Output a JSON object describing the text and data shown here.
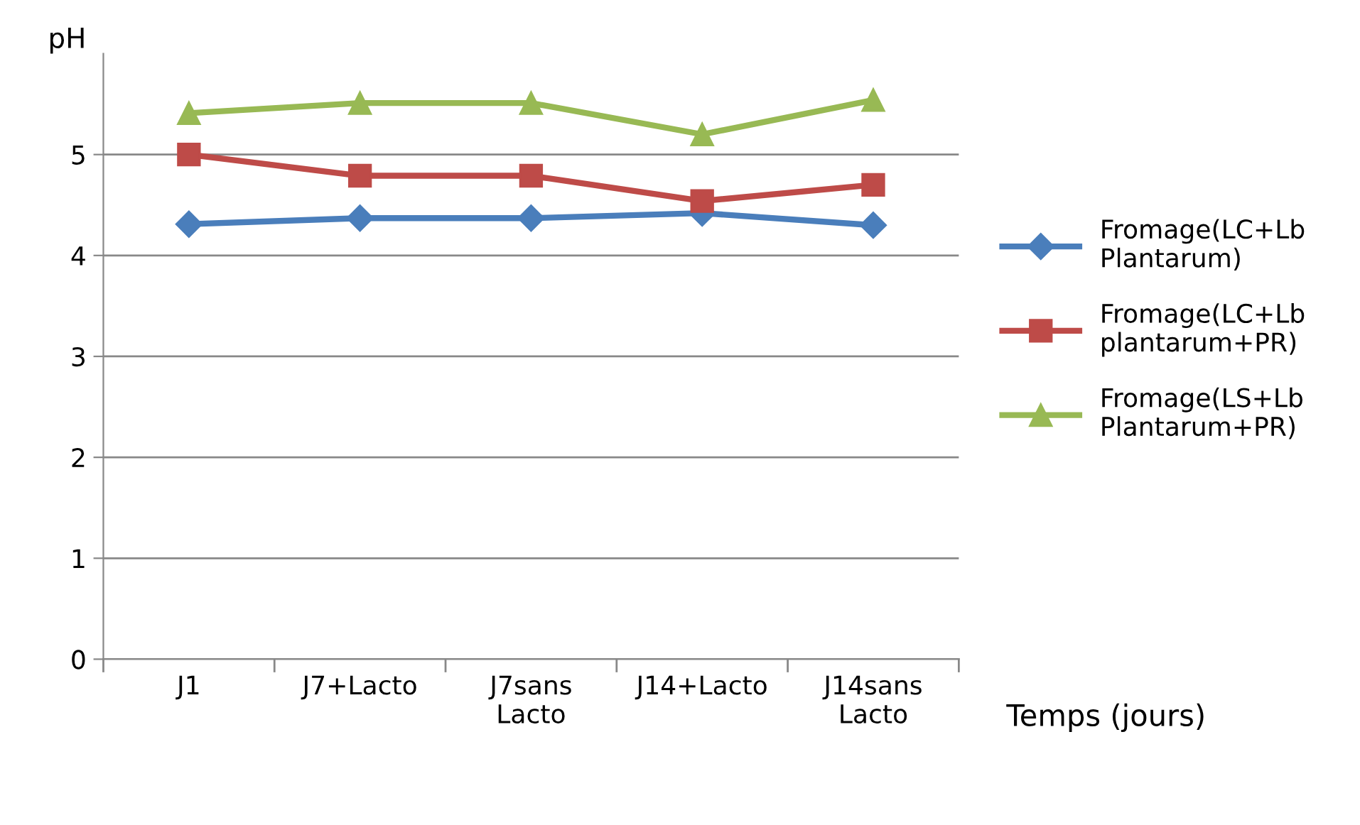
{
  "chart_data": {
    "type": "line",
    "ylabel": "pH",
    "xlabel": "Temps (jours)",
    "categories": [
      "J1",
      "J7+Lacto",
      "J7sans\nLacto",
      "J14+Lacto",
      "J14sans\nLacto"
    ],
    "series": [
      {
        "name": "Fromage(LC+Lb\nPlantarum)",
        "color": "#4a7ebb",
        "marker": "diamond",
        "values": [
          4.31,
          4.37,
          4.37,
          4.42,
          4.3
        ]
      },
      {
        "name": "Fromage(LC+Lb\nplantarum+PR)",
        "color": "#be4b48",
        "marker": "square",
        "values": [
          5.0,
          4.79,
          4.79,
          4.54,
          4.7
        ]
      },
      {
        "name": "Fromage(LS+Lb\nPlantarum+PR)",
        "color": "#98b954",
        "marker": "triangle",
        "values": [
          5.41,
          5.51,
          5.51,
          5.2,
          5.54
        ]
      }
    ],
    "ylim": [
      0,
      6
    ],
    "yticks": [
      0,
      1,
      2,
      3,
      4,
      5
    ],
    "grid": "y",
    "legend": "right",
    "line_style": "solid"
  }
}
